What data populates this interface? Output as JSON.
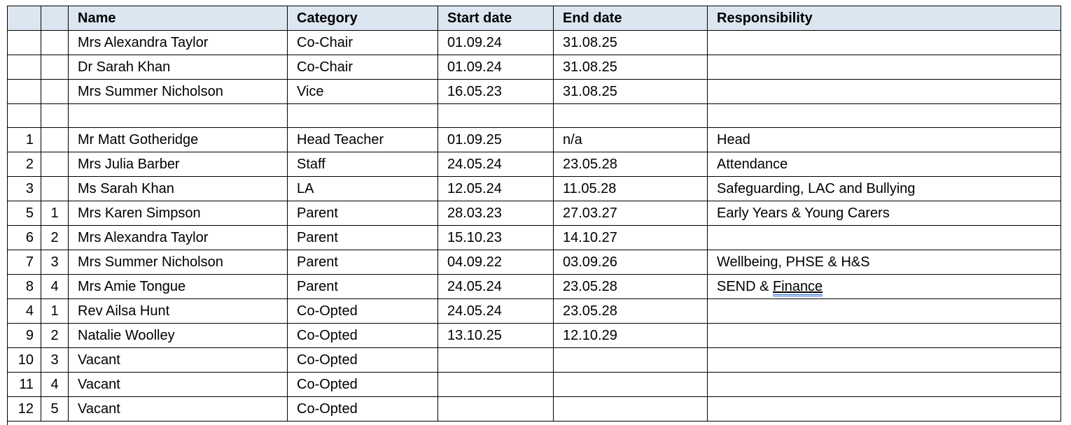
{
  "table": {
    "headers": [
      "",
      "",
      "Name",
      "Category",
      "Start date",
      "End date",
      "Responsibility"
    ],
    "rows": [
      {
        "num": "",
        "sub": "",
        "name": "Mrs Alexandra Taylor",
        "category": "Co-Chair",
        "start": "01.09.24",
        "end": "31.08.25",
        "responsibility": ""
      },
      {
        "num": "",
        "sub": "",
        "name": "Dr Sarah Khan",
        "category": "Co-Chair",
        "start": "01.09.24",
        "end": "31.08.25",
        "responsibility": ""
      },
      {
        "num": "",
        "sub": "",
        "name": "Mrs Summer Nicholson",
        "category": "Vice",
        "start": "16.05.23",
        "end": "31.08.25",
        "responsibility": ""
      },
      {
        "num": "",
        "sub": "",
        "name": "",
        "category": "",
        "start": "",
        "end": "",
        "responsibility": ""
      },
      {
        "num": "1",
        "sub": "",
        "name": "Mr Matt Gotheridge",
        "category": "Head Teacher",
        "start": "01.09.25",
        "end": "n/a",
        "responsibility": "Head"
      },
      {
        "num": "2",
        "sub": "",
        "name": "Mrs Julia Barber",
        "category": "Staff",
        "start": "24.05.24",
        "end": "23.05.28",
        "responsibility": "Attendance"
      },
      {
        "num": "3",
        "sub": "",
        "name": "Ms Sarah Khan",
        "category": "LA",
        "start": "12.05.24",
        "end": "11.05.28",
        "responsibility": "Safeguarding, LAC and Bullying"
      },
      {
        "num": "5",
        "sub": "1",
        "name": "Mrs Karen Simpson",
        "category": "Parent",
        "start": "28.03.23",
        "end": "27.03.27",
        "responsibility": "Early Years & Young Carers"
      },
      {
        "num": "6",
        "sub": "2",
        "name": "Mrs Alexandra Taylor",
        "category": "Parent",
        "start": "15.10.23",
        "end": "14.10.27",
        "responsibility": ""
      },
      {
        "num": "7",
        "sub": "3",
        "name": "Mrs Summer Nicholson",
        "category": "Parent",
        "start": "04.09.22",
        "end": "03.09.26",
        "responsibility": "Wellbeing, PHSE & H&S"
      },
      {
        "num": "8",
        "sub": "4",
        "name": "Mrs Amie Tongue",
        "category": "Parent",
        "start": "24.05.24",
        "end": "23.05.28",
        "responsibility": "SEND & Finance",
        "responsibility_parts": [
          {
            "text": "SEND & ",
            "grammar_flag": false
          },
          {
            "text": "Finance",
            "grammar_flag": true
          }
        ]
      },
      {
        "num": "4",
        "sub": "1",
        "name": "Rev Ailsa Hunt",
        "category": "Co-Opted",
        "start": "24.05.24",
        "end": "23.05.28",
        "responsibility": ""
      },
      {
        "num": "9",
        "sub": "2",
        "name": "Natalie Woolley",
        "category": "Co-Opted",
        "start": "13.10.25",
        "end": "12.10.29",
        "responsibility": ""
      },
      {
        "num": "10",
        "sub": "3",
        "name": "Vacant",
        "category": "Co-Opted",
        "start": "",
        "end": "",
        "responsibility": ""
      },
      {
        "num": "11",
        "sub": "4",
        "name": "Vacant",
        "category": "Co-Opted",
        "start": "",
        "end": "",
        "responsibility": ""
      },
      {
        "num": "12",
        "sub": "5",
        "name": "Vacant",
        "category": "Co-Opted",
        "start": "",
        "end": "",
        "responsibility": ""
      }
    ],
    "colors": {
      "header_bg": "#dce6f1",
      "border": "#000000",
      "text": "#000000",
      "grammar_underline": "#2e6fd6"
    }
  }
}
